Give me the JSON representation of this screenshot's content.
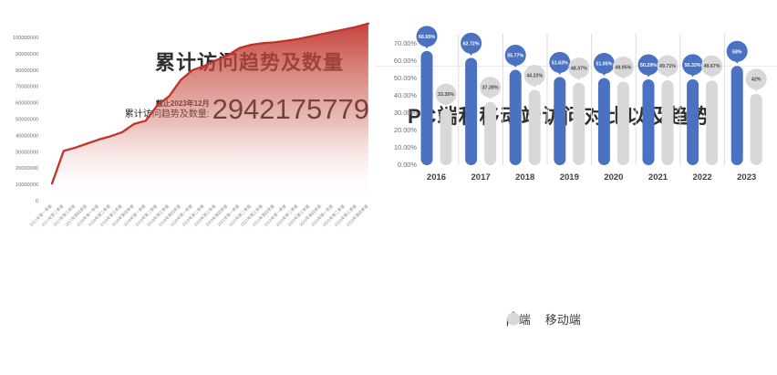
{
  "page": {
    "background": "#ffffff"
  },
  "chart_data": [
    {
      "type": "area",
      "title": "累计访问趋势及数量",
      "annotation": {
        "date_note": "截止2023年12月",
        "label": "累计访问趋势及数量:",
        "value": "2942175779"
      },
      "x": [
        "2017年第一季度",
        "2017年第二季度",
        "2017年第三季度",
        "2017年第四季度",
        "2018年第一季度",
        "2018年第二季度",
        "2018年第三季度",
        "2018年第四季度",
        "2019年第一季度",
        "2019年第二季度",
        "2019年第三季度",
        "2019年第四季度",
        "2020年第一季度",
        "2020年第二季度",
        "2020年第三季度",
        "2020年第四季度",
        "2021年第一季度",
        "2021年第二季度",
        "2021年第三季度",
        "2021年第四季度",
        "2022年第一季度",
        "2022年第二季度",
        "2022年第三季度",
        "2022年第四季度",
        "2023年第一季度",
        "2023年第二季度",
        "2023年第三季度",
        "2023年第四季度"
      ],
      "values": [
        10500000,
        30500000,
        32500000,
        35000000,
        37500000,
        39500000,
        42000000,
        47000000,
        49000000,
        58500000,
        64000000,
        74000000,
        80000000,
        82500000,
        86000000,
        89000000,
        93500000,
        95500000,
        96500000,
        97000000,
        98000000,
        99000000,
        100500000,
        102000000,
        103500000,
        105000000,
        106500000,
        108500000
      ],
      "y_ticks": [
        "0",
        "10000000",
        "20000000",
        "30000000",
        "40000000",
        "50000000",
        "60000000",
        "70000000",
        "80000000",
        "90000000",
        "100000000"
      ],
      "ylim": [
        0,
        100000000
      ],
      "grid": false,
      "line_color": "#c23229",
      "fill_style": "vertical gradient red to white"
    },
    {
      "type": "bar",
      "title": "PC端和移动端访问对比以及趋势",
      "categories": [
        "2016",
        "2017",
        "2018",
        "2019",
        "2020",
        "2021",
        "2022",
        "2023"
      ],
      "series": [
        {
          "name": "pc端",
          "color": "#4a72c0",
          "values": [
            66.65,
            62.72,
            55.77,
            51.63,
            51.05,
            50.29,
            50.33,
            58
          ],
          "labels": [
            "66.65%",
            "62.72%",
            "55.77%",
            "51.63%",
            "51.05%",
            "50.29%",
            "50.33%",
            "58%"
          ]
        },
        {
          "name": "移动端",
          "color": "#d8d8da",
          "values": [
            33.35,
            37.28,
            44.23,
            48.37,
            48.95,
            49.71,
            49.67,
            42
          ],
          "labels": [
            "33.35%",
            "37.28%",
            "44.23%",
            "48.37%",
            "48.95%",
            "49.71%",
            "49.67%",
            "42%"
          ]
        }
      ],
      "y_ticks": [
        "70.00%",
        "60.00%",
        "50.00%",
        "40.00%",
        "30.00%",
        "20.00%",
        "10.00%",
        "0.00%"
      ],
      "ylim": [
        0,
        70
      ],
      "grid": false,
      "legend_position": "bottom"
    }
  ]
}
